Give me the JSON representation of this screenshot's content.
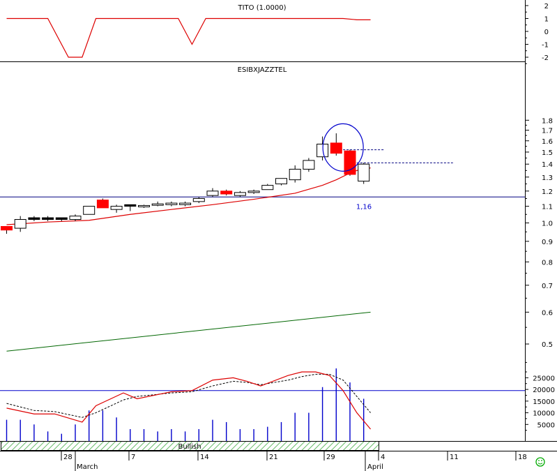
{
  "chart_data": [
    {
      "panel": "indicator",
      "type": "line",
      "title": "TITO (1.0000)",
      "y_ticks": [
        "2",
        "1",
        "0",
        "-1",
        "-2"
      ],
      "ylim": [
        -2.3,
        2.3
      ],
      "series": [
        {
          "color": "#dd0000",
          "points": [
            [
              0,
              1
            ],
            [
              3,
              1
            ],
            [
              4.5,
              -2
            ],
            [
              5.5,
              -2
            ],
            [
              6.5,
              1
            ],
            [
              12.5,
              1
            ],
            [
              13.5,
              -1
            ],
            [
              14.5,
              1
            ],
            [
              24.5,
              1
            ],
            [
              25.5,
              0.9
            ],
            [
              26.5,
              0.9
            ]
          ]
        }
      ]
    },
    {
      "panel": "price",
      "type": "candlestick",
      "title": "ESIBXJAZZTEL",
      "y_scale": "log",
      "ylim": [
        0.44,
        1.84
      ],
      "y_ticks": [
        "1.8",
        "1.7",
        "1.6",
        "1.5",
        "1.4",
        "1.3",
        "1.2",
        "1.1",
        "1.0",
        "0.9",
        "0.8",
        "0.7",
        "0.6",
        "0.5"
      ],
      "candles": [
        {
          "o": 0.98,
          "h": 0.98,
          "l": 0.94,
          "c": 0.96,
          "color": "red"
        },
        {
          "o": 0.97,
          "h": 1.04,
          "l": 0.95,
          "c": 1.02,
          "color": "white"
        },
        {
          "o": 1.02,
          "h": 1.04,
          "l": 1.01,
          "c": 1.03,
          "color": "black"
        },
        {
          "o": 1.02,
          "h": 1.04,
          "l": 1.01,
          "c": 1.03,
          "color": "black"
        },
        {
          "o": 1.02,
          "h": 1.03,
          "l": 1.01,
          "c": 1.03,
          "color": "black"
        },
        {
          "o": 1.02,
          "h": 1.05,
          "l": 1.01,
          "c": 1.04,
          "color": "white"
        },
        {
          "o": 1.05,
          "h": 1.1,
          "l": 1.05,
          "c": 1.1,
          "color": "white"
        },
        {
          "o": 1.14,
          "h": 1.15,
          "l": 1.09,
          "c": 1.09,
          "color": "red"
        },
        {
          "o": 1.08,
          "h": 1.11,
          "l": 1.06,
          "c": 1.1,
          "color": "white"
        },
        {
          "o": 1.1,
          "h": 1.11,
          "l": 1.07,
          "c": 1.11,
          "color": "black"
        },
        {
          "o": 1.1,
          "h": 1.11,
          "l": 1.09,
          "c": 1.105,
          "color": "white"
        },
        {
          "o": 1.11,
          "h": 1.13,
          "l": 1.1,
          "c": 1.115,
          "color": "white"
        },
        {
          "o": 1.11,
          "h": 1.13,
          "l": 1.1,
          "c": 1.12,
          "color": "white"
        },
        {
          "o": 1.11,
          "h": 1.13,
          "l": 1.1,
          "c": 1.12,
          "color": "white"
        },
        {
          "o": 1.13,
          "h": 1.16,
          "l": 1.12,
          "c": 1.15,
          "color": "white"
        },
        {
          "o": 1.17,
          "h": 1.22,
          "l": 1.16,
          "c": 1.2,
          "color": "white"
        },
        {
          "o": 1.2,
          "h": 1.21,
          "l": 1.17,
          "c": 1.18,
          "color": "red"
        },
        {
          "o": 1.17,
          "h": 1.2,
          "l": 1.16,
          "c": 1.19,
          "color": "white"
        },
        {
          "o": 1.19,
          "h": 1.21,
          "l": 1.18,
          "c": 1.2,
          "color": "white"
        },
        {
          "o": 1.21,
          "h": 1.25,
          "l": 1.21,
          "c": 1.24,
          "color": "white"
        },
        {
          "o": 1.25,
          "h": 1.29,
          "l": 1.24,
          "c": 1.29,
          "color": "white"
        },
        {
          "o": 1.28,
          "h": 1.39,
          "l": 1.26,
          "c": 1.36,
          "color": "white"
        },
        {
          "o": 1.36,
          "h": 1.45,
          "l": 1.34,
          "c": 1.43,
          "color": "white"
        },
        {
          "o": 1.46,
          "h": 1.64,
          "l": 1.43,
          "c": 1.57,
          "color": "white"
        },
        {
          "o": 1.58,
          "h": 1.67,
          "l": 1.47,
          "c": 1.49,
          "color": "red"
        },
        {
          "o": 1.51,
          "h": 1.52,
          "l": 1.31,
          "c": 1.32,
          "color": "red"
        },
        {
          "o": 1.27,
          "h": 1.41,
          "l": 1.25,
          "c": 1.4,
          "color": "white"
        }
      ],
      "moving_average_short": {
        "color": "#dd0000",
        "x": [
          0,
          3,
          6,
          9,
          12,
          15,
          18,
          21,
          23,
          24,
          25,
          25.5,
          26.5
        ],
        "y": [
          0.99,
          1.005,
          1.015,
          1.05,
          1.08,
          1.11,
          1.145,
          1.185,
          1.24,
          1.28,
          1.33,
          1.35,
          1.37
        ]
      },
      "moving_average_long": {
        "color": "#006600",
        "x": [
          0,
          26.5
        ],
        "y": [
          0.48,
          0.6
        ]
      },
      "support_line": {
        "value": 1.16,
        "label": "1,16",
        "color": "#000080"
      },
      "resistance_lines": [
        {
          "value": 1.52,
          "from": 24.5,
          "to": 27.5,
          "color": "#000080"
        },
        {
          "value": 1.41,
          "from": 25.5,
          "to": 32.5,
          "color": "#000080"
        }
      ],
      "highlight_circle": {
        "x": 24.5,
        "y": 1.54,
        "color": "#0000cc"
      }
    },
    {
      "panel": "volume",
      "type": "bar",
      "y_ticks": [
        "25000",
        "20000",
        "15000",
        "10000",
        "5000"
      ],
      "ylim": [
        0,
        30000
      ],
      "values": [
        7000,
        7000,
        5000,
        2000,
        1000,
        5000,
        11000,
        11000,
        8000,
        3000,
        3000,
        2000,
        3000,
        2000,
        3000,
        7000,
        6000,
        3000,
        3000,
        4000,
        6000,
        10000,
        10000,
        21000,
        29000,
        23000,
        16000
      ],
      "signal_level": 19500,
      "oscillator": {
        "color": "#dd0000",
        "x": [
          0,
          2,
          3.5,
          5.5,
          6.5,
          8.5,
          9.5,
          12,
          13.5,
          15,
          16.5,
          17.5,
          18.5,
          20.5,
          21.5,
          22.5,
          23.5,
          24.5,
          25.5,
          26.5
        ],
        "y": [
          12000,
          9500,
          9500,
          6000,
          13000,
          18500,
          16000,
          19000,
          19500,
          24000,
          25000,
          23500,
          21500,
          26000,
          27500,
          27500,
          26000,
          19500,
          10000,
          3000
        ]
      },
      "oscillator_signal": {
        "color": "#000000",
        "x": [
          0,
          2,
          3.5,
          5.5,
          6.5,
          8.5,
          9.5,
          12,
          13.5,
          15,
          16.5,
          17.5,
          18.5,
          20.5,
          21.5,
          22.5,
          23.5,
          24.5,
          25.5,
          26.5
        ],
        "y": [
          14000,
          11000,
          10500,
          8000,
          10000,
          15500,
          17000,
          18500,
          19000,
          21500,
          23500,
          23000,
          22000,
          24000,
          25500,
          26500,
          26500,
          24000,
          17000,
          10000
        ]
      }
    }
  ],
  "status_bar": {
    "label": "Bullish"
  },
  "x_axis": {
    "day_ticks": [
      "28",
      "7",
      "14",
      "21",
      "29",
      "4",
      "11",
      "18"
    ],
    "month_labels": [
      "March",
      "April"
    ]
  },
  "status_icon": {
    "name": "smiley-icon",
    "color": "#00aa00"
  }
}
